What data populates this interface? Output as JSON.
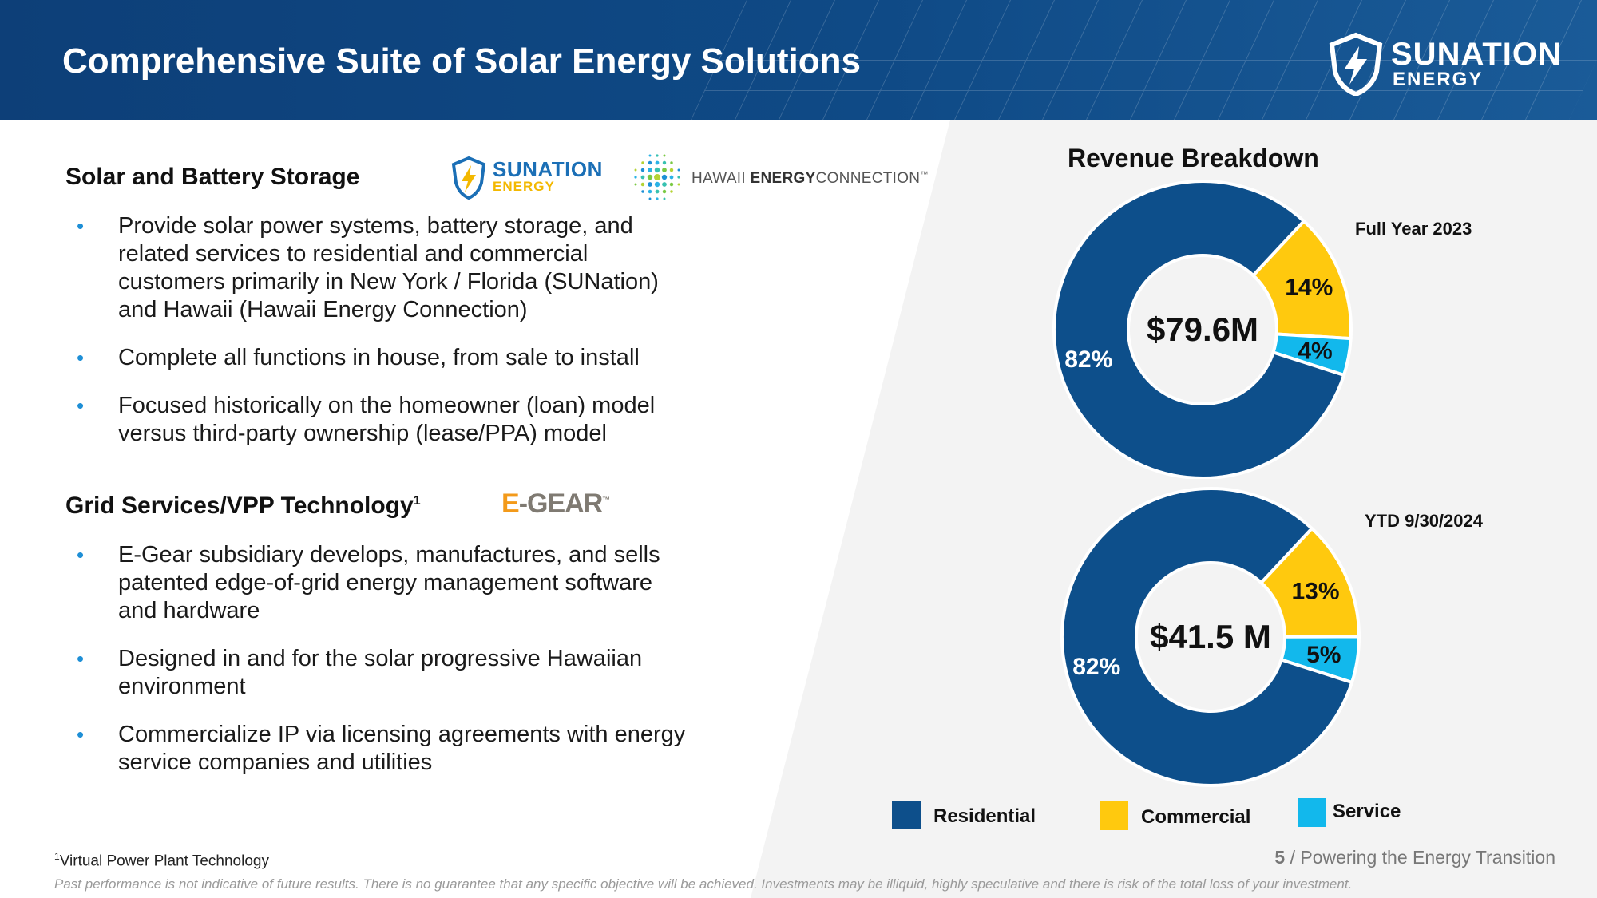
{
  "header": {
    "title": "Comprehensive Suite of Solar Energy Solutions",
    "logo_line1": "SUNATION",
    "logo_line2": "ENERGY"
  },
  "section1": {
    "heading": "Solar and Battery Storage",
    "logo_sunation_line1": "SUNATION",
    "logo_sunation_line2": "ENERGY",
    "logo_hawaii_part1": "HAWAII ",
    "logo_hawaii_part2": "ENERGY",
    "logo_hawaii_part3": "CONNECTION",
    "logo_hawaii_tm": "™",
    "bullets": [
      "Provide solar power systems, battery storage, and related services to residential and commercial customers primarily in New York / Florida (SUNation) and Hawaii (Hawaii Energy Connection)",
      "Complete all functions in house, from sale to install",
      "Focused historically on the homeowner (loan) model versus third-party ownership (lease/PPA) model"
    ]
  },
  "section2": {
    "heading": "Grid Services/VPP Technology",
    "heading_sup": "1",
    "logo_egear_e": "E",
    "logo_egear_rest": "-GEAR",
    "logo_egear_tm": "™",
    "bullets": [
      "E-Gear subsidiary develops, manufactures, and sells patented edge-of-grid energy management software and hardware",
      "Designed in and for the solar progressive Hawaiian environment",
      "Commercialize IP via licensing agreements with energy service companies and utilities"
    ]
  },
  "chart_data": {
    "title": "Revenue Breakdown",
    "type": "pie",
    "categories": [
      "Residential",
      "Commercial",
      "Service"
    ],
    "colors": {
      "Residential": "#0d4f8b",
      "Commercial": "#ffc90e",
      "Service": "#12b8ec"
    },
    "legend_position": "bottom",
    "charts": [
      {
        "label": "Full Year 2023",
        "center_text": "$79.6M",
        "values": [
          82,
          14,
          4
        ],
        "value_labels": [
          "82%",
          "14%",
          "4%"
        ]
      },
      {
        "label": "YTD 9/30/2024",
        "center_text": "$41.5 M",
        "values": [
          82,
          13,
          5
        ],
        "value_labels": [
          "82%",
          "13%",
          "5%"
        ]
      }
    ]
  },
  "footer": {
    "footnote_sup": "1",
    "footnote": "Virtual Power Plant Technology",
    "disclaimer": "Past performance is not indicative of future results. There is no guarantee that any specific objective will be achieved. Investments may be illiquid, highly speculative and there is risk of the total loss of your investment.",
    "page_number": "5",
    "page_tagline": " / Powering the Energy Transition"
  }
}
